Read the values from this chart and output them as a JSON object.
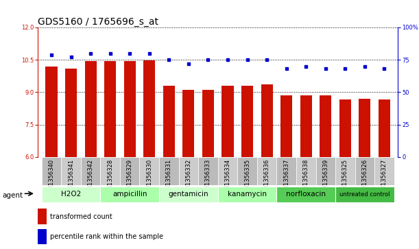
{
  "title": "GDS5160 / 1765696_s_at",
  "samples": [
    "GSM1356340",
    "GSM1356341",
    "GSM1356342",
    "GSM1356328",
    "GSM1356329",
    "GSM1356330",
    "GSM1356331",
    "GSM1356332",
    "GSM1356333",
    "GSM1356334",
    "GSM1356335",
    "GSM1356336",
    "GSM1356337",
    "GSM1356338",
    "GSM1356339",
    "GSM1356325",
    "GSM1356326",
    "GSM1356327"
  ],
  "bar_values": [
    10.2,
    10.1,
    10.45,
    10.45,
    10.45,
    10.48,
    9.3,
    9.1,
    9.1,
    9.3,
    9.3,
    9.35,
    8.85,
    8.85,
    8.85,
    8.65,
    8.7,
    8.65
  ],
  "dot_values": [
    79,
    77,
    80,
    80,
    80,
    80,
    75,
    72,
    75,
    75,
    75,
    75,
    68,
    70,
    68,
    68,
    70,
    68
  ],
  "agents": [
    {
      "label": "H2O2",
      "start": 0,
      "end": 2,
      "color": "#ccffcc"
    },
    {
      "label": "ampicillin",
      "start": 3,
      "end": 5,
      "color": "#aaffaa"
    },
    {
      "label": "gentamicin",
      "start": 6,
      "end": 8,
      "color": "#ccffcc"
    },
    {
      "label": "kanamycin",
      "start": 9,
      "end": 11,
      "color": "#aaffaa"
    },
    {
      "label": "norfloxacin",
      "start": 12,
      "end": 14,
      "color": "#55cc55"
    },
    {
      "label": "untreated control",
      "start": 15,
      "end": 17,
      "color": "#44bb44"
    }
  ],
  "ylim_left": [
    6,
    12
  ],
  "ylim_right": [
    0,
    100
  ],
  "yticks_left": [
    6,
    7.5,
    9,
    10.5,
    12
  ],
  "yticks_right": [
    0,
    25,
    50,
    75,
    100
  ],
  "bar_color": "#cc1100",
  "dot_color": "#0000cc",
  "bg_color": "#ffffff",
  "tick_bg_color": "#cccccc",
  "legend_bar_label": "transformed count",
  "legend_dot_label": "percentile rank within the sample",
  "title_fontsize": 10,
  "tick_fontsize": 6,
  "agent_fontsize": 7.5,
  "legend_fontsize": 7
}
